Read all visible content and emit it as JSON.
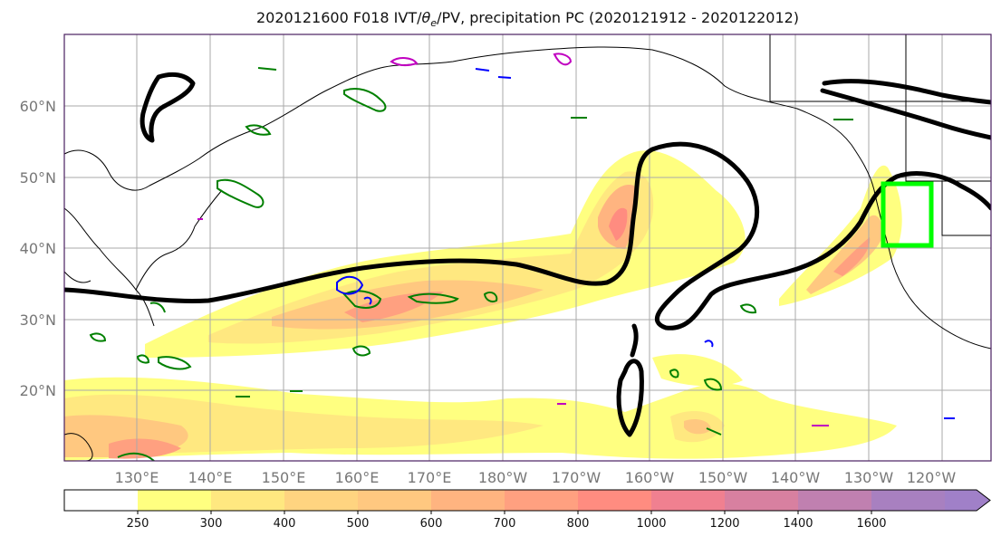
{
  "title": {
    "prefix": "2020121600 F018 IVT/",
    "theta": "θ",
    "sub": "e",
    "suffix": "/PV, precipitation PC (2020121912 - 2020122012)"
  },
  "lat_labels": [
    "60°N",
    "50°N",
    "40°N",
    "30°N",
    "20°N"
  ],
  "lon_labels": [
    "130°E",
    "140°E",
    "150°E",
    "160°E",
    "170°E",
    "180°W",
    "170°W",
    "160°W",
    "150°W",
    "140°W",
    "130°W",
    "120°W"
  ],
  "colorbar": {
    "levels": [
      "250",
      "300",
      "400",
      "500",
      "600",
      "700",
      "800",
      "1000",
      "1200",
      "1400",
      "1600"
    ],
    "colors": [
      "#ffffff",
      "#ffff80",
      "#ffe880",
      "#ffd480",
      "#ffc880",
      "#ffb480",
      "#ffa080",
      "#ff8c80",
      "#f08090",
      "#d880a0",
      "#c080b0",
      "#a880c0",
      "#a080c8"
    ]
  },
  "colors": {
    "ivt_contour": "#000000",
    "theta_e_contour": "#008000",
    "pv_blue": "#0000ff",
    "pv_magenta": "#c000c0",
    "highlight_box": "#00ff00",
    "grid": "#aaaaaa",
    "coastline": "#000000"
  }
}
